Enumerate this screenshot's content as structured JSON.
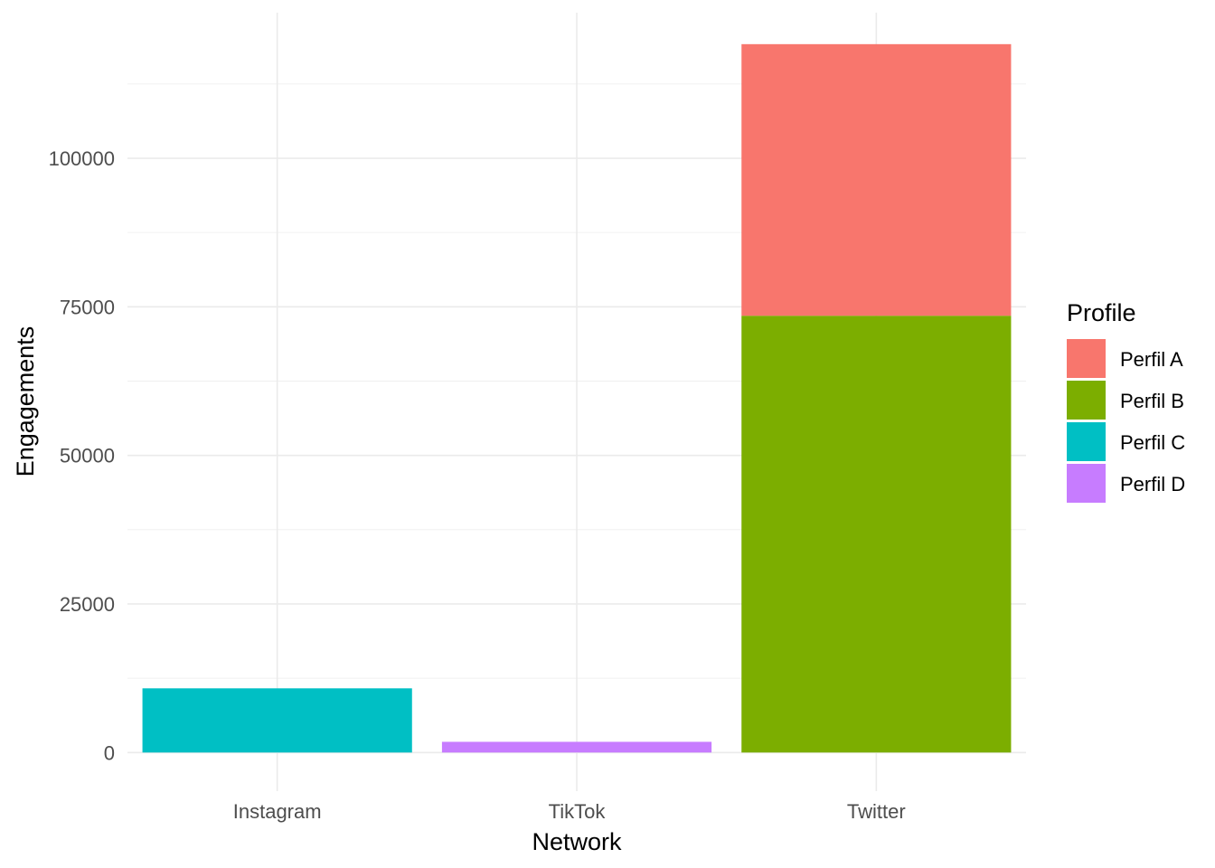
{
  "chart_data": {
    "type": "bar",
    "stacked": true,
    "categories": [
      "Instagram",
      "TikTok",
      "Twitter"
    ],
    "series": [
      {
        "name": "Perfil A",
        "color": "#F8766D",
        "values": [
          0,
          0,
          45700
        ]
      },
      {
        "name": "Perfil B",
        "color": "#7CAE00",
        "values": [
          0,
          0,
          73500
        ]
      },
      {
        "name": "Perfil C",
        "color": "#00BFC4",
        "values": [
          10800,
          0,
          0
        ]
      },
      {
        "name": "Perfil D",
        "color": "#C77CFF",
        "values": [
          0,
          1800,
          0
        ]
      }
    ],
    "stack_order_bottom_to_top": [
      "Perfil D",
      "Perfil C",
      "Perfil B",
      "Perfil A"
    ],
    "xlabel": "Network",
    "ylabel": "Engagements",
    "ylim": [
      -6500,
      124500
    ],
    "yticks": [
      0,
      25000,
      50000,
      75000,
      100000
    ],
    "ytick_labels": [
      "0",
      "25000",
      "50000",
      "75000",
      "100000"
    ],
    "legend": {
      "title": "Profile",
      "position": "right"
    },
    "grid": true,
    "theme": "minimal"
  }
}
